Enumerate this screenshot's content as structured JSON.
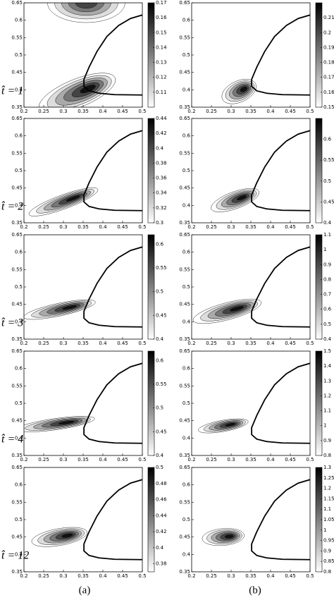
{
  "column_labels": [
    "(a)",
    "(b)"
  ],
  "rows": [
    {
      "label": "t̂ = 1",
      "panels": [
        {
          "xlim": [
            0.2,
            0.5
          ],
          "xticks": [
            0.2,
            0.25,
            0.3,
            0.35,
            0.4,
            0.45,
            0.5
          ],
          "ylim": [
            0.35,
            0.65
          ],
          "yticks": [
            0.35,
            0.4,
            0.45,
            0.5,
            0.55,
            0.6,
            0.65
          ],
          "clim": [
            0.1,
            0.17
          ],
          "cticks": [
            0.11,
            0.12,
            0.13,
            0.14,
            0.15,
            0.16,
            0.17
          ]
        },
        {
          "xlim": [
            0.2,
            0.5
          ],
          "xticks": [
            0.2,
            0.25,
            0.3,
            0.35,
            0.4,
            0.45,
            0.5
          ],
          "ylim": [
            0.35,
            0.65
          ],
          "yticks": [
            0.35,
            0.4,
            0.45,
            0.5,
            0.55,
            0.6,
            0.65
          ],
          "clim": [
            0.15,
            0.22
          ],
          "cticks": [
            0.15,
            0.16,
            0.17,
            0.18,
            0.19,
            0.2,
            0.21
          ]
        }
      ]
    },
    {
      "label": "t̂ = 2",
      "panels": [
        {
          "xlim": [
            0.2,
            0.5
          ],
          "xticks": [
            0.2,
            0.25,
            0.3,
            0.35,
            0.4,
            0.45,
            0.5
          ],
          "ylim": [
            0.35,
            0.65
          ],
          "yticks": [
            0.35,
            0.4,
            0.45,
            0.5,
            0.55,
            0.6,
            0.65
          ],
          "clim": [
            0.3,
            0.44
          ],
          "cticks": [
            0.3,
            0.32,
            0.34,
            0.36,
            0.38,
            0.4,
            0.42,
            0.44
          ]
        },
        {
          "xlim": [
            0.2,
            0.5
          ],
          "xticks": [
            0.2,
            0.25,
            0.3,
            0.35,
            0.4,
            0.45,
            0.5
          ],
          "ylim": [
            0.35,
            0.65
          ],
          "yticks": [
            0.35,
            0.4,
            0.45,
            0.5,
            0.55,
            0.6,
            0.65
          ],
          "clim": [
            0.4,
            0.65
          ],
          "cticks": [
            0.4,
            0.45,
            0.5,
            0.55,
            0.6
          ]
        }
      ]
    },
    {
      "label": "t̂ = 3",
      "panels": [
        {
          "xlim": [
            0.2,
            0.5
          ],
          "xticks": [
            0.2,
            0.25,
            0.3,
            0.35,
            0.4,
            0.45,
            0.5
          ],
          "ylim": [
            0.35,
            0.65
          ],
          "yticks": [
            0.35,
            0.4,
            0.45,
            0.5,
            0.55,
            0.6,
            0.65
          ],
          "clim": [
            0.4,
            0.62
          ],
          "cticks": [
            0.4,
            0.45,
            0.5,
            0.55,
            0.6
          ]
        },
        {
          "xlim": [
            0.2,
            0.5
          ],
          "xticks": [
            0.2,
            0.25,
            0.3,
            0.35,
            0.4,
            0.45,
            0.5
          ],
          "ylim": [
            0.35,
            0.65
          ],
          "yticks": [
            0.35,
            0.4,
            0.45,
            0.5,
            0.55,
            0.6,
            0.65
          ],
          "clim": [
            0.4,
            1.1
          ],
          "cticks": [
            0.4,
            0.5,
            0.6,
            0.7,
            0.8,
            0.9,
            1,
            1.1
          ]
        }
      ]
    },
    {
      "label": "t̂ = 4",
      "panels": [
        {
          "xlim": [
            0.2,
            0.5
          ],
          "xticks": [
            0.2,
            0.25,
            0.3,
            0.35,
            0.4,
            0.45,
            0.5
          ],
          "ylim": [
            0.35,
            0.65
          ],
          "yticks": [
            0.35,
            0.4,
            0.45,
            0.5,
            0.55,
            0.6,
            0.65
          ],
          "clim": [
            0.4,
            0.62
          ],
          "cticks": [
            0.4,
            0.45,
            0.5,
            0.55,
            0.6
          ]
        },
        {
          "xlim": [
            0.2,
            0.5
          ],
          "xticks": [
            0.2,
            0.25,
            0.3,
            0.35,
            0.4,
            0.45,
            0.5
          ],
          "ylim": [
            0.35,
            0.65
          ],
          "yticks": [
            0.35,
            0.4,
            0.45,
            0.5,
            0.55,
            0.6,
            0.65
          ],
          "clim": [
            0.8,
            1.5
          ],
          "cticks": [
            0.8,
            0.9,
            1,
            1.1,
            1.2,
            1.3,
            1.4,
            1.5
          ]
        }
      ]
    },
    {
      "label": "t̂ = 12",
      "panels": [
        {
          "xlim": [
            0.2,
            0.5
          ],
          "xticks": [
            0.2,
            0.25,
            0.3,
            0.35,
            0.4,
            0.45,
            0.5
          ],
          "ylim": [
            0.35,
            0.65
          ],
          "yticks": [
            0.35,
            0.4,
            0.45,
            0.5,
            0.55,
            0.6,
            0.65
          ],
          "clim": [
            0.37,
            0.5
          ],
          "cticks": [
            0.38,
            0.4,
            0.42,
            0.44,
            0.46,
            0.48,
            0.5
          ]
        },
        {
          "xlim": [
            0.2,
            0.5
          ],
          "xticks": [
            0.2,
            0.25,
            0.3,
            0.35,
            0.4,
            0.45,
            0.5
          ],
          "ylim": [
            0.35,
            0.65
          ],
          "yticks": [
            0.35,
            0.4,
            0.45,
            0.5,
            0.55,
            0.6,
            0.65
          ],
          "clim": [
            0.8,
            1.3
          ],
          "cticks": [
            0.8,
            0.85,
            0.9,
            0.95,
            1,
            1.05,
            1.1,
            1.15,
            1.2,
            1.25,
            1.3
          ]
        }
      ]
    }
  ]
}
